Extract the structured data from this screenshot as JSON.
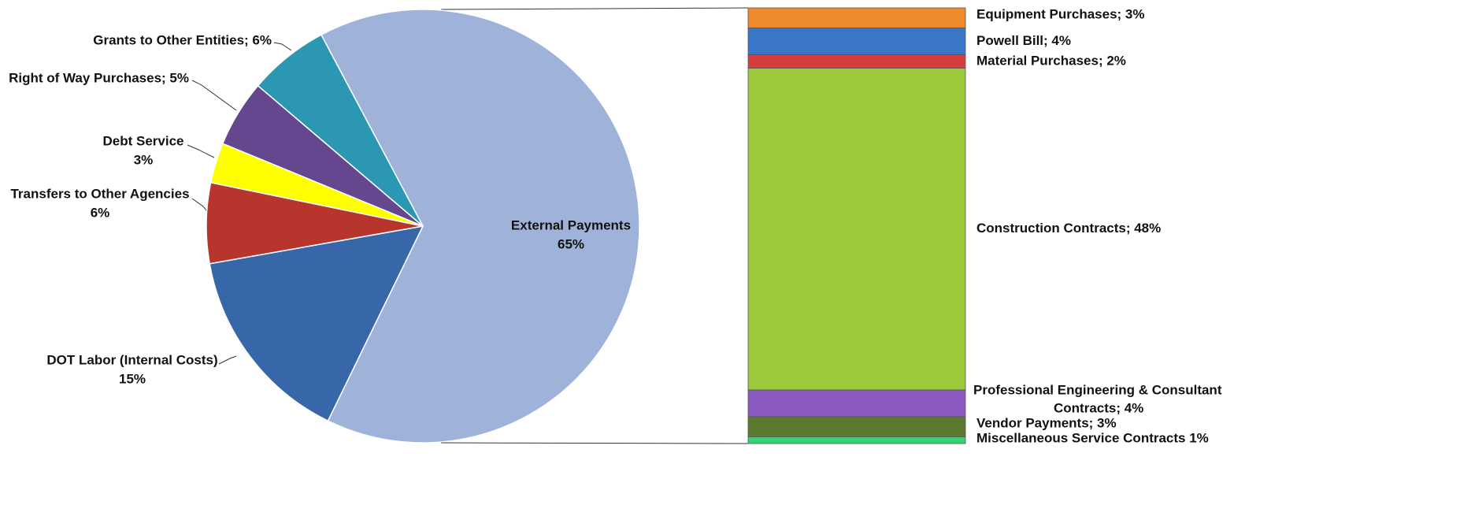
{
  "chart_data": {
    "type": "pie-of-bar",
    "pie": {
      "categories": [
        "External Payments",
        "DOT Labor (Internal Costs)",
        "Transfers to Other Agencies",
        "Debt Service",
        "Right of Way Purchases",
        "Grants to Other Entities"
      ],
      "values": [
        65,
        15,
        6,
        3,
        5,
        6
      ],
      "labels": [
        [
          "External Payments",
          "65%"
        ],
        [
          "DOT Labor (Internal Costs)",
          "15%"
        ],
        [
          "Transfers to Other Agencies",
          "6%"
        ],
        [
          "Debt Service",
          "3%"
        ],
        [
          "Right of Way Purchases; 5%"
        ],
        [
          "Grants to Other Entities; 6%"
        ]
      ],
      "colors": [
        "#9fb3da",
        "#3767a8",
        "#b8352e",
        "#ffff00",
        "#65478f",
        "#2b97b2"
      ]
    },
    "bar": {
      "categories": [
        "Equipment Purchases",
        "Powell Bill",
        "Material Purchases",
        "Construction Contracts",
        "Professional Engineering & Consultant Contracts",
        "Vendor Payments",
        "Miscellaneous Service Contracts"
      ],
      "values": [
        3,
        4,
        2,
        48,
        4,
        3,
        1
      ],
      "labels": [
        [
          "Equipment Purchases; 3%"
        ],
        [
          "Powell Bill; 4%"
        ],
        [
          "Material Purchases; 2%"
        ],
        [
          "Construction Contracts; 48%"
        ],
        [
          "Professional Engineering & Consultant",
          "Contracts; 4%"
        ],
        [
          "Vendor Payments; 3%"
        ],
        [
          "Miscellaneous Service Contracts 1%"
        ]
      ],
      "colors": [
        "#ee8a2c",
        "#3a77c6",
        "#d63d3d",
        "#9cc83c",
        "#8b5ac0",
        "#5b7a2f",
        "#2fd672"
      ]
    }
  }
}
